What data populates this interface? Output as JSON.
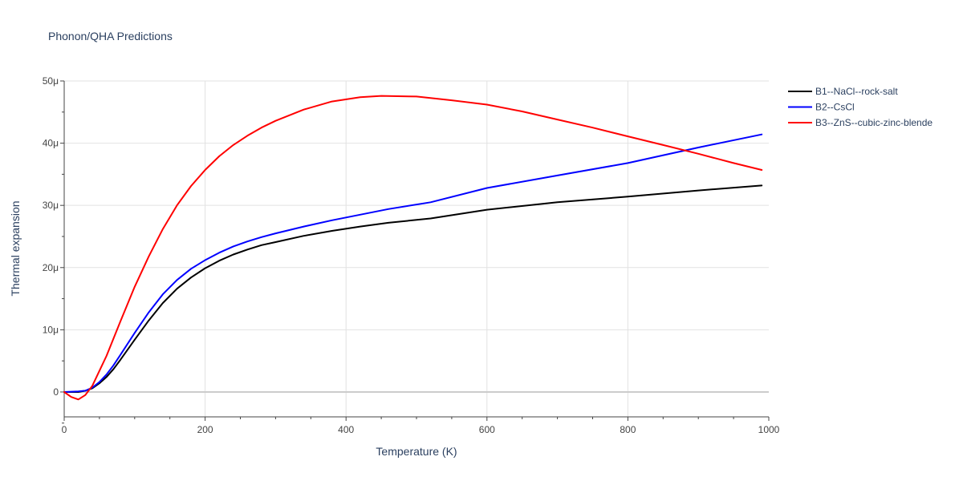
{
  "chart_data": {
    "type": "line",
    "title": "Phonon/QHA Predictions",
    "xlabel": "Temperature (K)",
    "ylabel": "Thermal expansion",
    "xlim": [
      0,
      1000
    ],
    "ylim": [
      -4e-06,
      5e-05
    ],
    "x_ticks": [
      {
        "value": 0,
        "label": "0"
      },
      {
        "value": 200,
        "label": "200"
      },
      {
        "value": 400,
        "label": "400"
      },
      {
        "value": 600,
        "label": "600"
      },
      {
        "value": 800,
        "label": "800"
      },
      {
        "value": 1000,
        "label": "1000"
      }
    ],
    "y_ticks": [
      {
        "value": 0,
        "label": "0"
      },
      {
        "value": 1e-05,
        "label": "10μ"
      },
      {
        "value": 2e-05,
        "label": "20μ"
      },
      {
        "value": 3e-05,
        "label": "30μ"
      },
      {
        "value": 4e-05,
        "label": "40μ"
      },
      {
        "value": 5e-05,
        "label": "50μ"
      }
    ],
    "grid": true,
    "legend_position": "top-right",
    "series": [
      {
        "name": "B1--NaCl--rock-salt",
        "color": "#000000",
        "x": [
          0,
          20,
          30,
          40,
          50,
          60,
          70,
          80,
          100,
          120,
          140,
          160,
          180,
          200,
          220,
          240,
          260,
          280,
          300,
          340,
          380,
          420,
          460,
          520,
          600,
          700,
          800,
          900,
          990
        ],
        "y": [
          0,
          0,
          2e-07,
          6e-07,
          1.4e-06,
          2.4e-06,
          3.7e-06,
          5.2e-06,
          8.4e-06,
          1.15e-05,
          1.43e-05,
          1.66e-05,
          1.84e-05,
          1.99e-05,
          2.11e-05,
          2.21e-05,
          2.29e-05,
          2.36e-05,
          2.41e-05,
          2.51e-05,
          2.59e-05,
          2.66e-05,
          2.72e-05,
          2.79e-05,
          2.93e-05,
          3.05e-05,
          3.14e-05,
          3.24e-05,
          3.32e-05
        ]
      },
      {
        "name": "B2--CsCl",
        "color": "#0000ff",
        "x": [
          0,
          20,
          30,
          40,
          50,
          60,
          70,
          80,
          100,
          120,
          140,
          160,
          180,
          200,
          220,
          240,
          260,
          280,
          300,
          340,
          380,
          420,
          460,
          520,
          600,
          700,
          800,
          900,
          990
        ],
        "y": [
          0,
          1e-07,
          2e-07,
          7e-07,
          1.6e-06,
          2.8e-06,
          4.3e-06,
          6e-06,
          9.5e-06,
          1.28e-05,
          1.57e-05,
          1.8e-05,
          1.98e-05,
          2.12e-05,
          2.24e-05,
          2.34e-05,
          2.42e-05,
          2.49e-05,
          2.55e-05,
          2.66e-05,
          2.76e-05,
          2.85e-05,
          2.94e-05,
          3.05e-05,
          3.28e-05,
          3.48e-05,
          3.68e-05,
          3.93e-05,
          4.14e-05
        ]
      },
      {
        "name": "B3--ZnS--cubic-zinc-blende",
        "color": "#ff0000",
        "x": [
          0,
          10,
          20,
          30,
          40,
          50,
          60,
          80,
          100,
          120,
          140,
          160,
          180,
          200,
          220,
          240,
          260,
          280,
          300,
          340,
          380,
          420,
          450,
          500,
          550,
          600,
          650,
          700,
          750,
          800,
          850,
          900,
          950,
          990
        ],
        "y": [
          0,
          -8e-07,
          -1.2e-06,
          -5e-07,
          1e-06,
          3.4e-06,
          5.8e-06,
          1.14e-05,
          1.69e-05,
          2.18e-05,
          2.62e-05,
          3e-05,
          3.31e-05,
          3.57e-05,
          3.79e-05,
          3.97e-05,
          4.12e-05,
          4.25e-05,
          4.36e-05,
          4.54e-05,
          4.67e-05,
          4.74e-05,
          4.76e-05,
          4.75e-05,
          4.69e-05,
          4.62e-05,
          4.51e-05,
          4.38e-05,
          4.25e-05,
          4.11e-05,
          3.97e-05,
          3.83e-05,
          3.68e-05,
          3.57e-05
        ]
      }
    ]
  }
}
